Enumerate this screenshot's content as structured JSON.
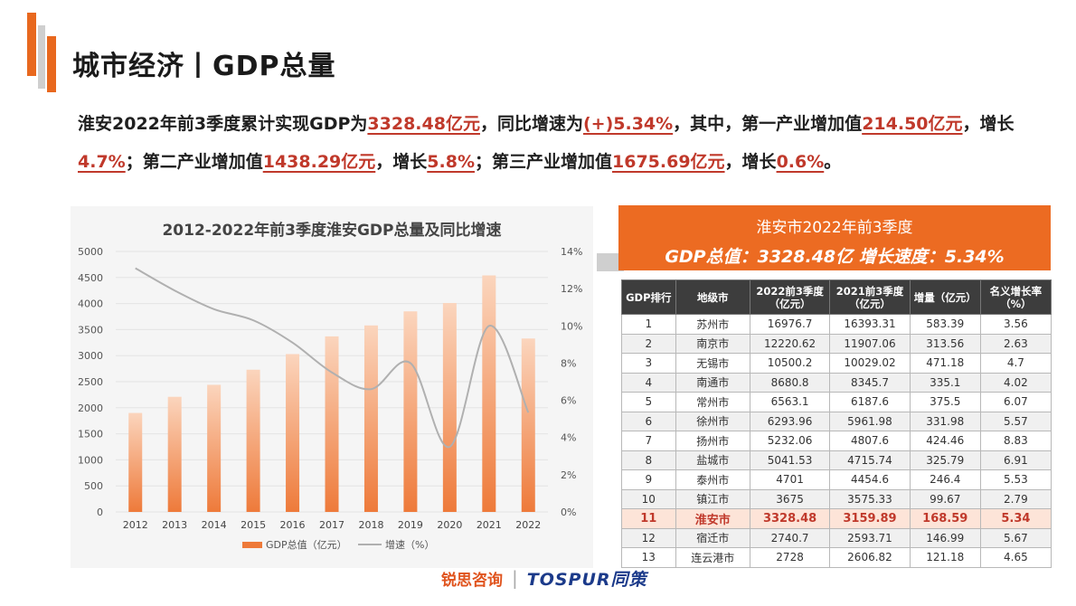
{
  "header": {
    "title": "城市经济丨GDP总量"
  },
  "intro": {
    "t1": "淮安2022年前3季度累计实现GDP为",
    "gdp": "3328.48亿元",
    "t2": "，同比增速为",
    "growth": "(+)5.34%",
    "t3": "，其中，第一产业增加值",
    "primary": "214.50亿元",
    "t4": "，增长",
    "primary_growth": "4.7%",
    "t5": "；第二产业增加值",
    "secondary": "1438.29亿元",
    "t6": "，增长",
    "secondary_growth": "5.8%",
    "t7": "；第三产业增加值",
    "tertiary": "1675.69亿元",
    "t8": "，增长",
    "tertiary_growth": "0.6%",
    "t9": "。"
  },
  "chart_data": {
    "type": "bar",
    "title": "2012-2022年前3季度淮安GDP总量及同比增速",
    "categories": [
      "2012",
      "2013",
      "2014",
      "2015",
      "2016",
      "2017",
      "2018",
      "2019",
      "2020",
      "2021",
      "2022"
    ],
    "left_axis": {
      "ylim": [
        0,
        5000
      ],
      "ticks": [
        "0",
        "500",
        "1000",
        "1500",
        "2000",
        "2500",
        "3000",
        "3500",
        "4000",
        "4500",
        "5000"
      ]
    },
    "right_axis": {
      "ylim": [
        0,
        14
      ],
      "ticks": [
        "0%",
        "2%",
        "4%",
        "6%",
        "8%",
        "10%",
        "12%",
        "14%"
      ]
    },
    "series": [
      {
        "name": "GDP总值（亿元）",
        "type": "bar",
        "axis": "left",
        "values": [
          1900,
          2210,
          2440,
          2730,
          3030,
          3370,
          3580,
          3850,
          4010,
          4540,
          3328.48
        ]
      },
      {
        "name": "增速（%）",
        "type": "line",
        "axis": "right",
        "values": [
          13.1,
          11.9,
          10.9,
          10.3,
          9.1,
          7.5,
          6.6,
          8.0,
          3.5,
          10.0,
          5.34
        ]
      }
    ],
    "legend_position": "bottom",
    "colors": {
      "bar": "#ee7a3a",
      "line": "#b0b0b0"
    }
  },
  "ranking": {
    "banner_title": "淮安市2022年前3季度",
    "banner_sub": "GDP总值：3328.48亿   增长速度：5.34%",
    "headers": [
      "GDP排行",
      "地级市",
      "2022前3季度（亿元）",
      "2021前3季度（亿元）",
      "增量（亿元）",
      "名义增长率（%）"
    ],
    "rows": [
      [
        "1",
        "苏州市",
        "16976.7",
        "16393.31",
        "583.39",
        "3.56"
      ],
      [
        "2",
        "南京市",
        "12220.62",
        "11907.06",
        "313.56",
        "2.63"
      ],
      [
        "3",
        "无锡市",
        "10500.2",
        "10029.02",
        "471.18",
        "4.7"
      ],
      [
        "4",
        "南通市",
        "8680.8",
        "8345.7",
        "335.1",
        "4.02"
      ],
      [
        "5",
        "常州市",
        "6563.1",
        "6187.6",
        "375.5",
        "6.07"
      ],
      [
        "6",
        "徐州市",
        "6293.96",
        "5961.98",
        "331.98",
        "5.57"
      ],
      [
        "7",
        "扬州市",
        "5232.06",
        "4807.6",
        "424.46",
        "8.83"
      ],
      [
        "8",
        "盐城市",
        "5041.53",
        "4715.74",
        "325.79",
        "6.91"
      ],
      [
        "9",
        "泰州市",
        "4701",
        "4454.6",
        "246.4",
        "5.53"
      ],
      [
        "10",
        "镇江市",
        "3675",
        "3575.33",
        "99.67",
        "2.79"
      ],
      [
        "11",
        "淮安市",
        "3328.48",
        "3159.89",
        "168.59",
        "5.34"
      ],
      [
        "12",
        "宿迁市",
        "2740.7",
        "2593.71",
        "146.99",
        "5.67"
      ],
      [
        "13",
        "连云港市",
        "2728",
        "2606.82",
        "121.18",
        "4.65"
      ]
    ],
    "highlight_rank": "11",
    "colors": {
      "banner": "#ec6b22",
      "header": "#3d3d3d",
      "highlight": "#fde4d8"
    }
  },
  "footer": {
    "logo1": "锐思咨询",
    "separator": "|",
    "logo2": "TOSPUR同策"
  }
}
